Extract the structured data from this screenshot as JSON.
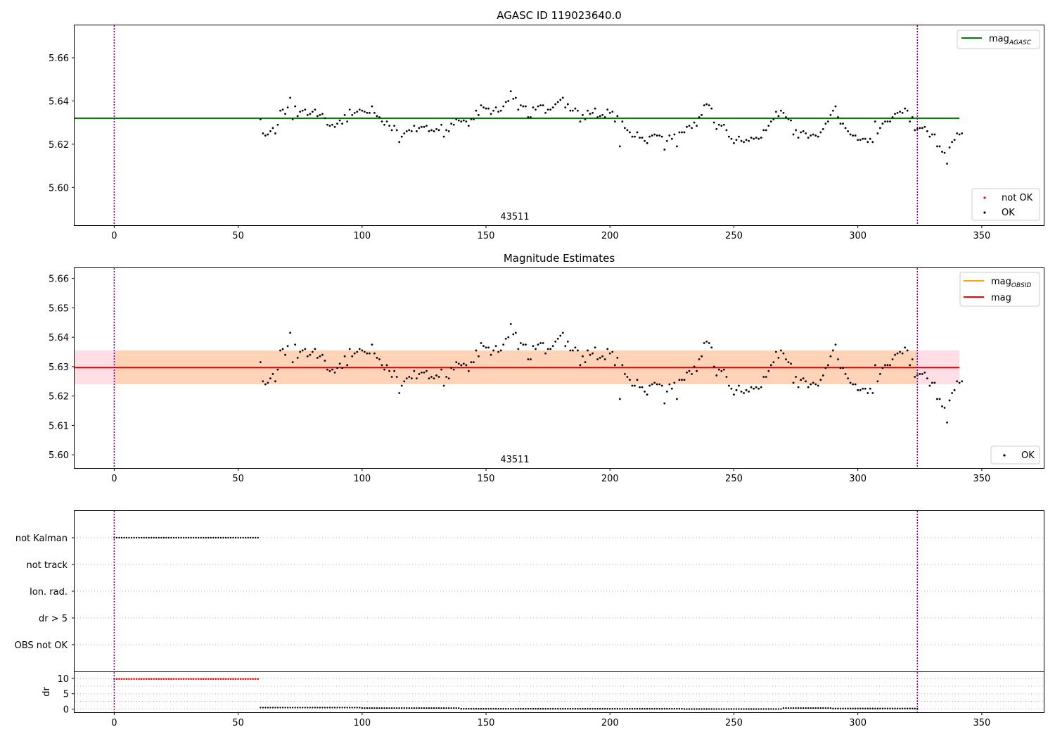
{
  "figure": {
    "title": "AGASC ID 119023640.0",
    "subtitle": "Magnitude Estimates",
    "obsid_label": "43511"
  },
  "colors": {
    "agasc": "#008000",
    "mag": "#ff0000",
    "obsid": "#ffa500",
    "band": "#ffc0cb",
    "vline": "#800080",
    "ok_point": "#000000",
    "not_ok_point": "#ff0000",
    "flag_grid": "#b0b0b0"
  },
  "chart_data": [
    {
      "type": "scatter",
      "title": "AGASC ID 119023640.0",
      "xlim": [
        -16,
        375
      ],
      "ylim": [
        5.5825,
        5.675
      ],
      "xticks": [
        0,
        50,
        100,
        150,
        200,
        250,
        300,
        350
      ],
      "yticks": [
        5.6,
        5.62,
        5.64,
        5.66
      ],
      "ytick_labels": [
        "5.60",
        "5.62",
        "5.64",
        "5.66"
      ],
      "hline": {
        "name": "mag_AGASC",
        "label_base": "mag",
        "label_sub": "AGASC",
        "y": 5.632,
        "x": [
          -16,
          341
        ]
      },
      "vlines": [
        0,
        324
      ],
      "annotation": {
        "text": "43511",
        "x": 162
      },
      "legends": [
        {
          "placement": "upper right",
          "entries": [
            {
              "label": "mag",
              "sub": "AGASC",
              "kind": "line",
              "color": "#008000"
            }
          ]
        },
        {
          "placement": "lower right",
          "entries": [
            {
              "label": "not OK",
              "kind": "point",
              "color": "#ff0000"
            },
            {
              "label": "OK",
              "kind": "point",
              "color": "#000000"
            }
          ]
        }
      ],
      "series": [
        {
          "name": "OK",
          "ref": "mag_series"
        }
      ]
    },
    {
      "type": "scatter",
      "title": "Magnitude Estimates",
      "xlim": [
        -16,
        375
      ],
      "ylim": [
        5.5955,
        5.6635
      ],
      "xticks": [
        0,
        50,
        100,
        150,
        200,
        250,
        300,
        350
      ],
      "yticks": [
        5.6,
        5.61,
        5.62,
        5.63,
        5.64,
        5.65,
        5.66
      ],
      "ytick_labels": [
        "5.60",
        "5.61",
        "5.62",
        "5.63",
        "5.64",
        "5.65",
        "5.66"
      ],
      "hline": {
        "name": "mag",
        "y": 5.6297,
        "x": [
          -16,
          341
        ]
      },
      "obsid_line": {
        "name": "mag_OBSID",
        "y": 5.6297,
        "x": [
          -16,
          341
        ]
      },
      "band": {
        "y0": 5.624,
        "y1": 5.6355,
        "x": [
          -16,
          341
        ]
      },
      "vlines": [
        0,
        324
      ],
      "annotation": {
        "text": "43511",
        "x": 162
      },
      "legends": [
        {
          "placement": "upper right",
          "entries": [
            {
              "label": "mag",
              "sub": "OBSID",
              "kind": "line",
              "color": "#ffa500"
            },
            {
              "label": "mag",
              "kind": "line",
              "color": "#ff0000"
            }
          ]
        },
        {
          "placement": "lower right",
          "entries": [
            {
              "label": "OK",
              "kind": "point",
              "color": "#000000"
            }
          ]
        }
      ],
      "series": [
        {
          "name": "OK",
          "ref": "mag_series"
        }
      ]
    },
    {
      "type": "scatter",
      "title": "",
      "categories": [
        "not Kalman",
        "not track",
        "Ion. rad.",
        "dr > 5",
        "OBS not OK"
      ],
      "flag_series": [
        {
          "category": "not Kalman",
          "x_range": [
            0,
            58
          ],
          "step": 1
        }
      ],
      "xlim": [
        -16,
        375
      ],
      "vlines": [
        0,
        324
      ]
    },
    {
      "type": "scatter",
      "ylabel": "dr",
      "xlim": [
        -16,
        375
      ],
      "ylim": [
        -1,
        12
      ],
      "xticks": [
        0,
        50,
        100,
        150,
        200,
        250,
        300,
        350
      ],
      "yticks": [
        0,
        5,
        10
      ],
      "vlines": [
        0,
        324
      ],
      "series": [
        {
          "name": "not OK",
          "x_range": [
            0,
            58
          ],
          "step": 1,
          "value": 9.8
        },
        {
          "name": "OK",
          "x_range": [
            59,
            324
          ],
          "step": 1,
          "values_by_segment": [
            [
              59,
              100,
              0.5
            ],
            [
              100,
              140,
              0.35
            ],
            [
              140,
              230,
              0.12
            ],
            [
              230,
              270,
              0.05
            ],
            [
              270,
              290,
              0.35
            ],
            [
              290,
              324,
              0.2
            ]
          ]
        }
      ]
    }
  ],
  "mag_series": {
    "x0": 59,
    "step": 1,
    "y": [
      5.6315,
      5.625,
      5.624,
      5.6245,
      5.626,
      5.6275,
      5.625,
      5.629,
      5.6355,
      5.636,
      5.634,
      5.637,
      5.6415,
      5.6315,
      5.6375,
      5.633,
      5.635,
      5.6355,
      5.636,
      5.6335,
      5.634,
      5.635,
      5.636,
      5.633,
      5.6335,
      5.634,
      5.632,
      5.629,
      5.6285,
      5.629,
      5.628,
      5.6295,
      5.631,
      5.6295,
      5.6335,
      5.6305,
      5.636,
      5.6335,
      5.6345,
      5.635,
      5.636,
      5.6355,
      5.635,
      5.6345,
      5.6345,
      5.6375,
      5.6345,
      5.633,
      5.6325,
      5.6305,
      5.629,
      5.6305,
      5.6285,
      5.6265,
      5.6285,
      5.6265,
      5.621,
      5.6235,
      5.625,
      5.626,
      5.6265,
      5.626,
      5.6285,
      5.626,
      5.6275,
      5.628,
      5.628,
      5.6285,
      5.626,
      5.6265,
      5.626,
      5.627,
      5.6265,
      5.629,
      5.6235,
      5.6265,
      5.626,
      5.6295,
      5.629,
      5.6315,
      5.631,
      5.6305,
      5.631,
      5.6305,
      5.6285,
      5.6315,
      5.6315,
      5.6355,
      5.6335,
      5.638,
      5.637,
      5.6365,
      5.6365,
      5.634,
      5.6355,
      5.637,
      5.635,
      5.6355,
      5.6375,
      5.6395,
      5.64,
      5.6445,
      5.641,
      5.6415,
      5.636,
      5.638,
      5.6375,
      5.6375,
      5.6325,
      5.6325,
      5.637,
      5.636,
      5.6375,
      5.638,
      5.638,
      5.6345,
      5.636,
      5.636,
      5.637,
      5.6385,
      5.6395,
      5.6405,
      5.6415,
      5.637,
      5.6385,
      5.6355,
      5.6355,
      5.6365,
      5.6355,
      5.6305,
      5.6335,
      5.6315,
      5.6355,
      5.634,
      5.6345,
      5.6365,
      5.6325,
      5.633,
      5.6335,
      5.6325,
      5.636,
      5.6345,
      5.635,
      5.6305,
      5.633,
      5.619,
      5.6305,
      5.6275,
      5.6265,
      5.6255,
      5.6235,
      5.6235,
      5.6255,
      5.623,
      5.623,
      5.6215,
      5.6205,
      5.6235,
      5.624,
      5.6245,
      5.624,
      5.624,
      5.6235,
      5.6175,
      5.6215,
      5.624,
      5.6225,
      5.6245,
      5.619,
      5.6255,
      5.6255,
      5.6255,
      5.628,
      5.6285,
      5.6275,
      5.63,
      5.6285,
      5.6325,
      5.6335,
      5.638,
      5.6385,
      5.638,
      5.6365,
      5.63,
      5.627,
      5.629,
      5.6285,
      5.629,
      5.6265,
      5.6235,
      5.6225,
      5.6205,
      5.622,
      5.6235,
      5.6215,
      5.621,
      5.622,
      5.6215,
      5.623,
      5.6225,
      5.623,
      5.6225,
      5.623,
      5.6265,
      5.6265,
      5.6285,
      5.6305,
      5.6315,
      5.635,
      5.633,
      5.6355,
      5.6345,
      5.6325,
      5.6315,
      5.631,
      5.6245,
      5.6265,
      5.623,
      5.6255,
      5.626,
      5.625,
      5.623,
      5.624,
      5.6245,
      5.624,
      5.6235,
      5.6255,
      5.627,
      5.6295,
      5.6305,
      5.6335,
      5.6355,
      5.6375,
      5.6325,
      5.6295,
      5.6295,
      5.6275,
      5.626,
      5.6245,
      5.624,
      5.624,
      5.622,
      5.622,
      5.6225,
      5.6225,
      5.621,
      5.6225,
      5.621,
      5.6305,
      5.625,
      5.6275,
      5.6295,
      5.6305,
      5.6305,
      5.6305,
      5.6325,
      5.634,
      5.6345,
      5.635,
      5.6345,
      5.6365,
      5.6355,
      5.6305,
      5.6325,
      5.6265,
      5.627,
      5.6275,
      5.6275,
      5.628,
      5.626,
      5.6235,
      5.6245,
      5.6245,
      5.619,
      5.619,
      5.6165,
      5.616,
      5.611,
      5.6185,
      5.621,
      5.622,
      5.625,
      5.6245,
      5.625
    ]
  }
}
